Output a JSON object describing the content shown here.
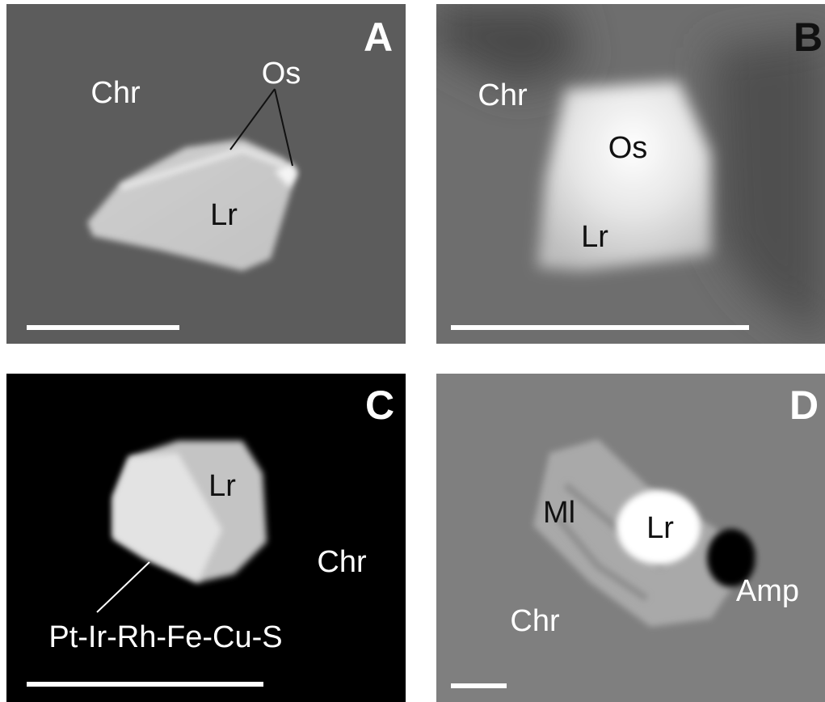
{
  "panels": [
    {
      "letter": "A",
      "labels": [
        "Chr",
        "Os",
        "Lr"
      ]
    },
    {
      "letter": "B",
      "labels": [
        "Chr",
        "Os",
        "Lr"
      ]
    },
    {
      "letter": "C",
      "labels": [
        "Lr",
        "Chr",
        "Pt-Ir-Rh-Fe-Cu-S"
      ]
    },
    {
      "letter": "D",
      "labels": [
        "Ml",
        "Lr",
        "Amp",
        "Chr"
      ]
    }
  ]
}
